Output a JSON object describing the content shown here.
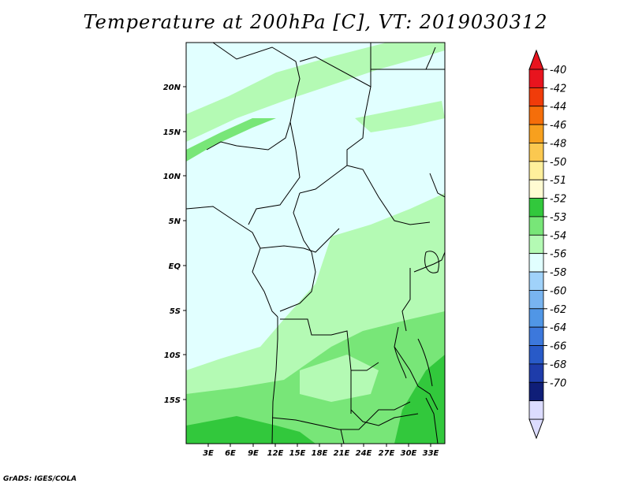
{
  "title": "Temperature at 200hPa [C], VT: 2019030312",
  "credit": "GrADS: IGES/COLA",
  "map": {
    "lat_labels": [
      "20N",
      "15N",
      "10N",
      "5N",
      "EQ",
      "5S",
      "10S",
      "15S"
    ],
    "lon_labels": [
      "3E",
      "6E",
      "9E",
      "12E",
      "15E",
      "18E",
      "21E",
      "24E",
      "27E",
      "30E",
      "33E"
    ]
  },
  "colorbar": {
    "levels": [
      {
        "label": "-40",
        "color": "#e8141e"
      },
      {
        "label": "-42",
        "color": "#f03c0a"
      },
      {
        "label": "-44",
        "color": "#f56e0a"
      },
      {
        "label": "-46",
        "color": "#f7a01e"
      },
      {
        "label": "-48",
        "color": "#fbc850"
      },
      {
        "label": "-50",
        "color": "#fff09c"
      },
      {
        "label": "-51",
        "color": "#fffbd2"
      },
      {
        "label": "-52",
        "color": "#32c83c"
      },
      {
        "label": "-53",
        "color": "#78e678"
      },
      {
        "label": "-54",
        "color": "#b4fab4"
      },
      {
        "label": "-56",
        "color": "#e1ffff"
      },
      {
        "label": "-58",
        "color": "#a0d2fa"
      },
      {
        "label": "-60",
        "color": "#78b4f0"
      },
      {
        "label": "-62",
        "color": "#5096e6"
      },
      {
        "label": "-64",
        "color": "#3c78dc"
      },
      {
        "label": "-66",
        "color": "#285ac8"
      },
      {
        "label": "-68",
        "color": "#1e3caa"
      },
      {
        "label": "-70",
        "color": "#0f1e78"
      },
      {
        "label": "",
        "color": "#dcdcff"
      }
    ],
    "top_arrow_color": "#e8141e",
    "bottom_arrow_color": "#dcdcff"
  }
}
